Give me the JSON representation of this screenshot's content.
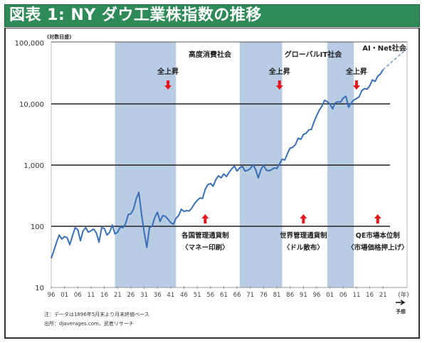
{
  "title": "図表 1: NY ダウ工業株指数の推移",
  "chart_data": {
    "type": "line",
    "title": "NY ダウ工業株指数の推移",
    "ylabel": "(対数目盛)",
    "xlabel": "(年)",
    "yscale": "log",
    "ylim": [
      10,
      100000
    ],
    "xlim": [
      1896,
      2030
    ],
    "y_ticks": [
      "10",
      "100",
      "1,000",
      "10,000",
      "100,000"
    ],
    "x_ticks": [
      "96",
      "01",
      "06",
      "11",
      "16",
      "21",
      "26",
      "31",
      "36",
      "41",
      "46",
      "51",
      "56",
      "61",
      "66",
      "71",
      "76",
      "81",
      "86",
      "91",
      "96",
      "01",
      "06",
      "11",
      "16",
      "21"
    ],
    "gridlines": [
      100,
      1000,
      10000
    ],
    "series": [
      {
        "name": "NY ダウ工業株指数",
        "color": "#3a6fb5",
        "x": [
          1896,
          1897,
          1898,
          1899,
          1900,
          1901,
          1902,
          1903,
          1904,
          1905,
          1906,
          1907,
          1908,
          1909,
          1910,
          1911,
          1912,
          1913,
          1914,
          1915,
          1916,
          1917,
          1918,
          1919,
          1920,
          1921,
          1922,
          1923,
          1924,
          1925,
          1926,
          1927,
          1928,
          1929,
          1930,
          1931,
          1932,
          1933,
          1934,
          1935,
          1936,
          1937,
          1938,
          1939,
          1940,
          1941,
          1942,
          1943,
          1944,
          1945,
          1946,
          1947,
          1948,
          1949,
          1950,
          1951,
          1952,
          1953,
          1954,
          1955,
          1956,
          1957,
          1958,
          1959,
          1960,
          1961,
          1962,
          1963,
          1964,
          1965,
          1966,
          1967,
          1968,
          1969,
          1970,
          1971,
          1972,
          1973,
          1974,
          1975,
          1976,
          1977,
          1978,
          1979,
          1980,
          1981,
          1982,
          1983,
          1984,
          1985,
          1986,
          1987,
          1988,
          1989,
          1990,
          1991,
          1992,
          1993,
          1994,
          1995,
          1996,
          1997,
          1998,
          1999,
          2000,
          2001,
          2002,
          2003,
          2004,
          2005,
          2006,
          2007,
          2008,
          2009,
          2010,
          2011,
          2012,
          2013,
          2014,
          2015,
          2016,
          2017,
          2018,
          2019,
          2020,
          2021
        ],
        "values": [
          30,
          40,
          55,
          72,
          62,
          68,
          65,
          50,
          70,
          95,
          88,
          58,
          85,
          95,
          80,
          85,
          90,
          78,
          55,
          95,
          92,
          72,
          80,
          105,
          75,
          80,
          98,
          95,
          110,
          155,
          160,
          190,
          280,
          360,
          160,
          80,
          45,
          95,
          100,
          140,
          170,
          120,
          150,
          145,
          130,
          115,
          108,
          135,
          150,
          190,
          175,
          180,
          178,
          200,
          235,
          265,
          290,
          285,
          400,
          480,
          500,
          450,
          580,
          670,
          620,
          720,
          650,
          760,
          870,
          960,
          800,
          900,
          950,
          800,
          820,
          880,
          1010,
          850,
          620,
          850,
          1000,
          830,
          805,
          840,
          900,
          880,
          1050,
          1250,
          1210,
          1550,
          1900,
          1950,
          2170,
          2750,
          2630,
          3170,
          3300,
          3750,
          3830,
          5100,
          6450,
          7900,
          9200,
          11500,
          10800,
          10000,
          8300,
          10400,
          10800,
          10700,
          12500,
          13300,
          8800,
          10400,
          11600,
          12200,
          13100,
          16500,
          17800,
          17400,
          19800,
          24700,
          23300,
          28500,
          30600,
          36300
        ]
      },
      {
        "name": "予想",
        "style": "dashed",
        "x": [
          2021,
          2030
        ],
        "values": [
          36300,
          80000
        ]
      }
    ],
    "shaded_periods": [
      {
        "from": 1920,
        "to": 1943
      },
      {
        "from": 1967,
        "to": 1983
      },
      {
        "from": 2000,
        "to": 2010
      }
    ],
    "annotations": {
      "eras": [
        "高度消費社会",
        "グローバルIT社会",
        "AI・Net社会"
      ],
      "up_markers": [
        {
          "label": "全上昇",
          "x": 1940
        },
        {
          "label": "全上昇",
          "x": 1982
        },
        {
          "label": "全上昇",
          "x": 2011
        }
      ],
      "policies": [
        {
          "line1": "各国管理通貨制",
          "line2": "〈マネー印刷〉",
          "x": 1954
        },
        {
          "line1": "世界管理通貨制",
          "line2": "〈ドル散布〉",
          "x": 1991
        },
        {
          "line1": "QE市場本位制",
          "line2": "〈市場価格押上げ〉",
          "x": 2019
        }
      ],
      "forecast_label": "予想"
    }
  },
  "notes": {
    "line1": "注：データは1896年5月末より月末終値ベース",
    "line2": "出所：djaverages.com、武者リサーチ"
  }
}
